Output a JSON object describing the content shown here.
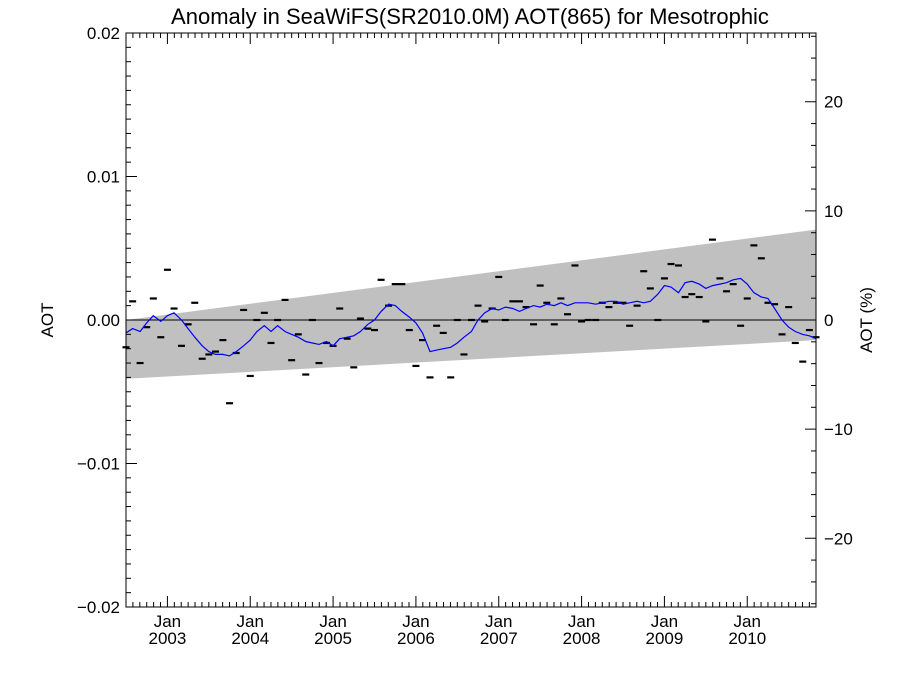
{
  "chart_data": {
    "type": "line",
    "title": "Anomaly in SeaWiFS(SR2010.0M) AOT(865) for Mesotrophic",
    "ylabel": "AOT",
    "y2label": "AOT (%)",
    "xlabel": "",
    "x_range": [
      2002.5,
      2010.83
    ],
    "ylim": [
      -0.02,
      0.02
    ],
    "y2lim": [
      -26.3,
      26.3
    ],
    "y_ticks": [
      {
        "value": 0.02,
        "label": "0.02"
      },
      {
        "value": 0.01,
        "label": "0.01"
      },
      {
        "value": 0.0,
        "label": "0.00"
      },
      {
        "value": -0.01,
        "label": "−0.01"
      },
      {
        "value": -0.02,
        "label": "−0.02"
      }
    ],
    "y2_ticks": [
      {
        "value": 20,
        "label": "20"
      },
      {
        "value": 10,
        "label": "10"
      },
      {
        "value": 0,
        "label": "0"
      },
      {
        "value": -10,
        "label": "−10"
      },
      {
        "value": -20,
        "label": "−20"
      }
    ],
    "x_ticks": [
      {
        "value": 2003.0,
        "month": "Jan",
        "year": "2003"
      },
      {
        "value": 2004.0,
        "month": "Jan",
        "year": "2004"
      },
      {
        "value": 2005.0,
        "month": "Jan",
        "year": "2005"
      },
      {
        "value": 2006.0,
        "month": "Jan",
        "year": "2006"
      },
      {
        "value": 2007.0,
        "month": "Jan",
        "year": "2007"
      },
      {
        "value": 2008.0,
        "month": "Jan",
        "year": "2008"
      },
      {
        "value": 2009.0,
        "month": "Jan",
        "year": "2009"
      },
      {
        "value": 2010.0,
        "month": "Jan",
        "year": "2010"
      }
    ],
    "zero_line": 0.0,
    "uncertainty_band": {
      "color": "#c0c0c0",
      "x": [
        2002.5,
        2010.83
      ],
      "upper": [
        0.0,
        0.0063
      ],
      "lower": [
        -0.0041,
        -0.0014
      ]
    },
    "series": [
      {
        "kind": "monthly_marks",
        "color": "#000000",
        "points": [
          [
            2002.5,
            -0.0019
          ],
          [
            2002.58,
            0.0013
          ],
          [
            2002.67,
            -0.003
          ],
          [
            2002.75,
            -0.0005
          ],
          [
            2002.83,
            0.0015
          ],
          [
            2002.92,
            -0.0012
          ],
          [
            2003.0,
            0.0035
          ],
          [
            2003.08,
            0.0008
          ],
          [
            2003.17,
            -0.0018
          ],
          [
            2003.25,
            -0.0003
          ],
          [
            2003.33,
            0.0012
          ],
          [
            2003.42,
            -0.0027
          ],
          [
            2003.5,
            -0.0024
          ],
          [
            2003.58,
            -0.0022
          ],
          [
            2003.67,
            -0.0014
          ],
          [
            2003.75,
            -0.0058
          ],
          [
            2003.83,
            -0.0023
          ],
          [
            2003.92,
            0.0007
          ],
          [
            2004.0,
            -0.0039
          ],
          [
            2004.08,
            0.0
          ],
          [
            2004.17,
            0.0005
          ],
          [
            2004.25,
            -0.0016
          ],
          [
            2004.33,
            0.0
          ],
          [
            2004.42,
            0.0014
          ],
          [
            2004.5,
            -0.0028
          ],
          [
            2004.58,
            -0.001
          ],
          [
            2004.67,
            -0.0038
          ],
          [
            2004.75,
            0.0
          ],
          [
            2004.83,
            -0.003
          ],
          [
            2004.92,
            -0.0016
          ],
          [
            2005.0,
            -0.0018
          ],
          [
            2005.08,
            0.0008
          ],
          [
            2005.17,
            -0.0013
          ],
          [
            2005.25,
            -0.0033
          ],
          [
            2005.33,
            0.0001
          ],
          [
            2005.42,
            -0.0006
          ],
          [
            2005.5,
            -0.0007
          ],
          [
            2005.58,
            0.0028
          ],
          [
            2005.67,
            0.001
          ],
          [
            2005.75,
            0.0025
          ],
          [
            2005.83,
            0.0025
          ],
          [
            2005.92,
            -0.0007
          ],
          [
            2006.0,
            -0.0032
          ],
          [
            2006.08,
            -0.0014
          ],
          [
            2006.17,
            -0.004
          ],
          [
            2006.25,
            -0.0004
          ],
          [
            2006.33,
            -0.0009
          ],
          [
            2006.42,
            -0.004
          ],
          [
            2006.5,
            0.0
          ],
          [
            2006.58,
            -0.0024
          ],
          [
            2006.67,
            0.0
          ],
          [
            2006.75,
            0.001
          ],
          [
            2006.83,
            -0.0001
          ],
          [
            2006.92,
            0.0008
          ],
          [
            2007.0,
            0.003
          ],
          [
            2007.08,
            0.0
          ],
          [
            2007.17,
            0.0013
          ],
          [
            2007.25,
            0.0013
          ],
          [
            2007.33,
            0.0009
          ],
          [
            2007.42,
            -0.0003
          ],
          [
            2007.5,
            0.0024
          ],
          [
            2007.58,
            0.0012
          ],
          [
            2007.67,
            -0.0003
          ],
          [
            2007.75,
            0.0015
          ],
          [
            2007.83,
            0.0004
          ],
          [
            2007.92,
            0.0038
          ],
          [
            2008.0,
            -0.0001
          ],
          [
            2008.08,
            0.0
          ],
          [
            2008.17,
            0.0
          ],
          [
            2008.25,
            0.0012
          ],
          [
            2008.33,
            0.0009
          ],
          [
            2008.42,
            0.0012
          ],
          [
            2008.5,
            0.0012
          ],
          [
            2008.58,
            -0.0004
          ],
          [
            2008.67,
            0.001
          ],
          [
            2008.75,
            0.0034
          ],
          [
            2008.83,
            0.0022
          ],
          [
            2008.92,
            0.0
          ],
          [
            2009.0,
            0.0029
          ],
          [
            2009.08,
            0.0039
          ],
          [
            2009.17,
            0.0038
          ],
          [
            2009.25,
            0.0016
          ],
          [
            2009.33,
            0.0018
          ],
          [
            2009.42,
            0.0016
          ],
          [
            2009.5,
            -0.0001
          ],
          [
            2009.58,
            0.0056
          ],
          [
            2009.67,
            0.0029
          ],
          [
            2009.75,
            0.002
          ],
          [
            2009.83,
            0.0025
          ],
          [
            2009.92,
            -0.0004
          ],
          [
            2010.0,
            0.0015
          ],
          [
            2010.08,
            0.0052
          ],
          [
            2010.17,
            0.0043
          ],
          [
            2010.25,
            0.0012
          ],
          [
            2010.33,
            0.0011
          ],
          [
            2010.42,
            -0.001
          ],
          [
            2010.5,
            0.0009
          ],
          [
            2010.58,
            -0.0016
          ],
          [
            2010.67,
            -0.0029
          ],
          [
            2010.75,
            -0.0007
          ],
          [
            2010.83,
            -0.0012
          ]
        ]
      },
      {
        "kind": "running_mean",
        "color": "#0000ff",
        "points": [
          [
            2002.5,
            -0.0009
          ],
          [
            2002.58,
            -0.0006
          ],
          [
            2002.67,
            -0.0008
          ],
          [
            2002.75,
            -0.0002
          ],
          [
            2002.83,
            0.0003
          ],
          [
            2002.92,
            -0.0001
          ],
          [
            2003.0,
            0.0003
          ],
          [
            2003.08,
            0.0005
          ],
          [
            2003.17,
            0.0
          ],
          [
            2003.25,
            -0.0006
          ],
          [
            2003.33,
            -0.0012
          ],
          [
            2003.42,
            -0.0018
          ],
          [
            2003.5,
            -0.0022
          ],
          [
            2003.58,
            -0.0024
          ],
          [
            2003.67,
            -0.0024
          ],
          [
            2003.75,
            -0.0025
          ],
          [
            2003.83,
            -0.0022
          ],
          [
            2003.92,
            -0.0018
          ],
          [
            2004.0,
            -0.0014
          ],
          [
            2004.08,
            -0.0008
          ],
          [
            2004.17,
            -0.0004
          ],
          [
            2004.25,
            -0.0008
          ],
          [
            2004.33,
            -0.0004
          ],
          [
            2004.42,
            -0.0008
          ],
          [
            2004.5,
            -0.001
          ],
          [
            2004.58,
            -0.0012
          ],
          [
            2004.67,
            -0.0015
          ],
          [
            2004.75,
            -0.0016
          ],
          [
            2004.83,
            -0.0017
          ],
          [
            2004.92,
            -0.0015
          ],
          [
            2005.0,
            -0.0018
          ],
          [
            2005.08,
            -0.0013
          ],
          [
            2005.17,
            -0.0012
          ],
          [
            2005.25,
            -0.0011
          ],
          [
            2005.33,
            -0.0008
          ],
          [
            2005.42,
            -0.0003
          ],
          [
            2005.5,
            0.0
          ],
          [
            2005.58,
            0.0006
          ],
          [
            2005.67,
            0.0011
          ],
          [
            2005.75,
            0.001
          ],
          [
            2005.83,
            0.0006
          ],
          [
            2005.92,
            0.0002
          ],
          [
            2006.0,
            -0.0002
          ],
          [
            2006.08,
            -0.0009
          ],
          [
            2006.17,
            -0.0022
          ],
          [
            2006.25,
            -0.0021
          ],
          [
            2006.33,
            -0.002
          ],
          [
            2006.42,
            -0.0019
          ],
          [
            2006.5,
            -0.0016
          ],
          [
            2006.58,
            -0.0012
          ],
          [
            2006.67,
            -0.0008
          ],
          [
            2006.75,
            0.0
          ],
          [
            2006.83,
            0.0005
          ],
          [
            2006.92,
            0.0008
          ],
          [
            2007.0,
            0.0007
          ],
          [
            2007.08,
            0.0009
          ],
          [
            2007.17,
            0.0008
          ],
          [
            2007.25,
            0.0006
          ],
          [
            2007.33,
            0.0008
          ],
          [
            2007.42,
            0.001
          ],
          [
            2007.5,
            0.0009
          ],
          [
            2007.58,
            0.0011
          ],
          [
            2007.67,
            0.001
          ],
          [
            2007.75,
            0.0012
          ],
          [
            2007.83,
            0.001
          ],
          [
            2007.92,
            0.0012
          ],
          [
            2008.0,
            0.0012
          ],
          [
            2008.08,
            0.0012
          ],
          [
            2008.17,
            0.0011
          ],
          [
            2008.25,
            0.0012
          ],
          [
            2008.33,
            0.0013
          ],
          [
            2008.42,
            0.0013
          ],
          [
            2008.5,
            0.0011
          ],
          [
            2008.58,
            0.0012
          ],
          [
            2008.67,
            0.0013
          ],
          [
            2008.75,
            0.0012
          ],
          [
            2008.83,
            0.0013
          ],
          [
            2008.92,
            0.0018
          ],
          [
            2009.0,
            0.0024
          ],
          [
            2009.08,
            0.0023
          ],
          [
            2009.17,
            0.0019
          ],
          [
            2009.25,
            0.0026
          ],
          [
            2009.33,
            0.0027
          ],
          [
            2009.42,
            0.0025
          ],
          [
            2009.5,
            0.0022
          ],
          [
            2009.58,
            0.0024
          ],
          [
            2009.67,
            0.0025
          ],
          [
            2009.75,
            0.0026
          ],
          [
            2009.83,
            0.0028
          ],
          [
            2009.92,
            0.0029
          ],
          [
            2010.0,
            0.0025
          ],
          [
            2010.08,
            0.0019
          ],
          [
            2010.17,
            0.0016
          ],
          [
            2010.25,
            0.0015
          ],
          [
            2010.33,
            0.0008
          ],
          [
            2010.42,
            0.0
          ],
          [
            2010.5,
            -0.0005
          ],
          [
            2010.58,
            -0.0008
          ],
          [
            2010.67,
            -0.001
          ],
          [
            2010.75,
            -0.0011
          ],
          [
            2010.83,
            -0.0013
          ]
        ]
      }
    ]
  }
}
